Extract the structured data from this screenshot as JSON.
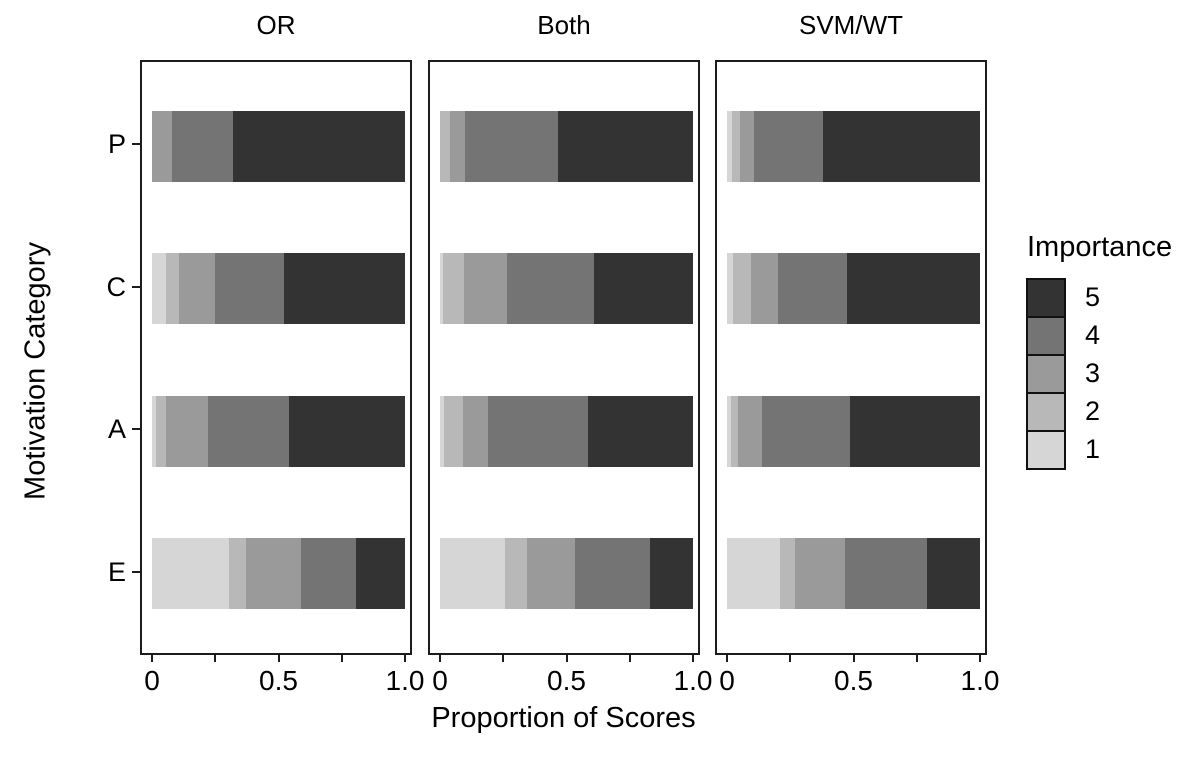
{
  "chart_data": {
    "type": "bar",
    "orientation": "horizontal",
    "stacked": true,
    "normalized": true,
    "title": "",
    "xlabel": "Proportion of Scores",
    "y_axis_title": "Motivation Category",
    "categories": [
      "P",
      "C",
      "A",
      "E"
    ],
    "x_axis": {
      "range": [
        0,
        1
      ],
      "tick_positions": [
        0,
        0.25,
        0.5,
        0.75,
        1.0
      ],
      "major": [
        {
          "pos": 0,
          "label": "0"
        },
        {
          "pos": 0.5,
          "label": "0.5"
        },
        {
          "pos": 1.0,
          "label": "1.0"
        }
      ]
    },
    "stack_order": [
      "1",
      "2",
      "3",
      "4",
      "5"
    ],
    "colors": {
      "1": "#d6d6d6",
      "2": "#b8b8b8",
      "3": "#9a9a9a",
      "4": "#747474",
      "5": "#333333"
    },
    "legend": {
      "title": "Importance",
      "position": "right",
      "entries": [
        {
          "label": "5",
          "color": "#333333"
        },
        {
          "label": "4",
          "color": "#747474"
        },
        {
          "label": "3",
          "color": "#9a9a9a"
        },
        {
          "label": "2",
          "color": "#b8b8b8"
        },
        {
          "label": "1",
          "color": "#d6d6d6"
        }
      ]
    },
    "panels": [
      {
        "name": "OR",
        "rows": [
          {
            "category": "P",
            "values": {
              "1": 0,
              "2": 0,
              "3": 0.08,
              "4": 0.24,
              "5": 0.68
            }
          },
          {
            "category": "C",
            "values": {
              "1": 0.055,
              "2": 0.05,
              "3": 0.145,
              "4": 0.27,
              "5": 0.48
            }
          },
          {
            "category": "A",
            "values": {
              "1": 0.015,
              "2": 0.04,
              "3": 0.165,
              "4": 0.32,
              "5": 0.46
            }
          },
          {
            "category": "E",
            "values": {
              "1": 0.305,
              "2": 0.065,
              "3": 0.22,
              "4": 0.215,
              "5": 0.195
            }
          }
        ]
      },
      {
        "name": "Both",
        "rows": [
          {
            "category": "P",
            "values": {
              "1": 0,
              "2": 0.04,
              "3": 0.06,
              "4": 0.365,
              "5": 0.535
            }
          },
          {
            "category": "C",
            "values": {
              "1": 0.01,
              "2": 0.085,
              "3": 0.17,
              "4": 0.345,
              "5": 0.39
            }
          },
          {
            "category": "A",
            "values": {
              "1": 0.015,
              "2": 0.075,
              "3": 0.1,
              "4": 0.395,
              "5": 0.415
            }
          },
          {
            "category": "E",
            "values": {
              "1": 0.255,
              "2": 0.09,
              "3": 0.19,
              "4": 0.295,
              "5": 0.17
            }
          }
        ]
      },
      {
        "name": "SVM/WT",
        "rows": [
          {
            "category": "P",
            "values": {
              "1": 0.02,
              "2": 0.03,
              "3": 0.055,
              "4": 0.275,
              "5": 0.62
            }
          },
          {
            "category": "C",
            "values": {
              "1": 0.025,
              "2": 0.07,
              "3": 0.105,
              "4": 0.275,
              "5": 0.525
            }
          },
          {
            "category": "A",
            "values": {
              "1": 0.015,
              "2": 0.03,
              "3": 0.095,
              "4": 0.345,
              "5": 0.515
            }
          },
          {
            "category": "E",
            "values": {
              "1": 0.21,
              "2": 0.06,
              "3": 0.195,
              "4": 0.325,
              "5": 0.21
            }
          }
        ]
      }
    ]
  }
}
